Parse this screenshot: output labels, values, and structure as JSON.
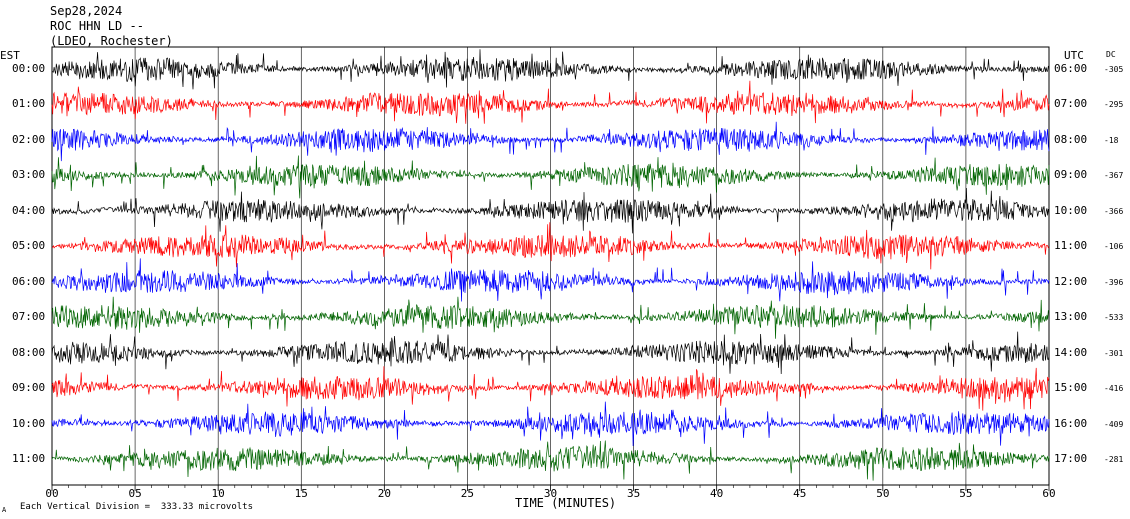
{
  "header": {
    "date": "Sep28,2024",
    "station": "ROC HHN LD --",
    "network": "(LDEO, Rochester)"
  },
  "left_axis_title": "EST",
  "right_axis_title": "UTC",
  "dc_title": "DC",
  "x_axis_title": "TIME (MINUTES)",
  "footer_note": "Each Vertical Division =  333.33 microvolts",
  "footer_mark": "A",
  "colors": {
    "black": "#000000",
    "red": "#ff0000",
    "blue": "#0000ff",
    "green": "#006400",
    "grid": "#000000"
  },
  "chart_data": {
    "type": "line",
    "title": "ROC HHN LD --",
    "xlabel": "TIME (MINUTES)",
    "xlim": [
      0,
      60
    ],
    "x_ticks": [
      "00",
      "05",
      "10",
      "15",
      "20",
      "25",
      "30",
      "35",
      "40",
      "45",
      "50",
      "55",
      "60"
    ],
    "rows": [
      {
        "est": "00:00",
        "utc": "06:00",
        "dc": "-305",
        "color": "black"
      },
      {
        "est": "01:00",
        "utc": "07:00",
        "dc": "-295",
        "color": "red"
      },
      {
        "est": "02:00",
        "utc": "08:00",
        "dc": "-18",
        "color": "blue"
      },
      {
        "est": "03:00",
        "utc": "09:00",
        "dc": "-367",
        "color": "green"
      },
      {
        "est": "04:00",
        "utc": "10:00",
        "dc": "-366",
        "color": "black"
      },
      {
        "est": "05:00",
        "utc": "11:00",
        "dc": "-106",
        "color": "red"
      },
      {
        "est": "06:00",
        "utc": "12:00",
        "dc": "-396",
        "color": "blue"
      },
      {
        "est": "07:00",
        "utc": "13:00",
        "dc": "-533",
        "color": "green"
      },
      {
        "est": "08:00",
        "utc": "14:00",
        "dc": "-301",
        "color": "black"
      },
      {
        "est": "09:00",
        "utc": "15:00",
        "dc": "-416",
        "color": "red"
      },
      {
        "est": "10:00",
        "utc": "16:00",
        "dc": "-409",
        "color": "blue"
      },
      {
        "est": "11:00",
        "utc": "17:00",
        "dc": "-281",
        "color": "green"
      }
    ],
    "grid": true
  }
}
